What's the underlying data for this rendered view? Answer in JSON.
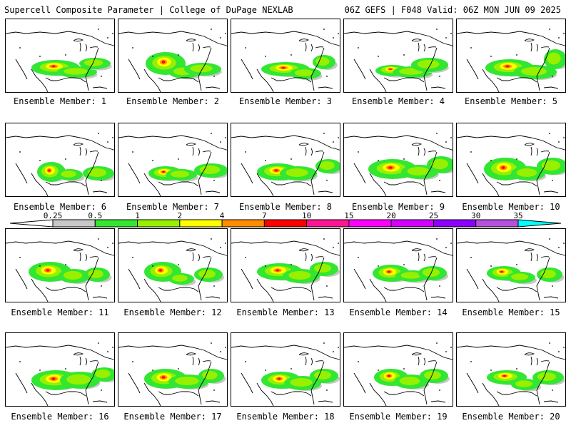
{
  "header": {
    "left": "Supercell Composite Parameter | College of DuPage NEXLAB",
    "right": "06Z GEFS | F048 Valid: 06Z MON JUN 09 2025"
  },
  "legend": {
    "ticks": [
      "0.25",
      "0.5",
      "1",
      "2",
      "4",
      "7",
      "10",
      "15",
      "20",
      "25",
      "30",
      "35"
    ],
    "colors": [
      "#c8c8c8",
      "#32e632",
      "#96f000",
      "#ffff00",
      "#ff8c00",
      "#ff0000",
      "#ff1493",
      "#ff00ff",
      "#d200ff",
      "#8c00ff",
      "#b450dc",
      "#00ffff"
    ]
  },
  "members": [
    {
      "label": "Ensemble Member: 1"
    },
    {
      "label": "Ensemble Member: 2"
    },
    {
      "label": "Ensemble Member: 3"
    },
    {
      "label": "Ensemble Member: 4"
    },
    {
      "label": "Ensemble Member: 5"
    },
    {
      "label": "Ensemble Member: 6"
    },
    {
      "label": "Ensemble Member: 7"
    },
    {
      "label": "Ensemble Member: 8"
    },
    {
      "label": "Ensemble Member: 9"
    },
    {
      "label": "Ensemble Member: 10"
    },
    {
      "label": "Ensemble Member: 11"
    },
    {
      "label": "Ensemble Member: 12"
    },
    {
      "label": "Ensemble Member: 13"
    },
    {
      "label": "Ensemble Member: 14"
    },
    {
      "label": "Ensemble Member: 15"
    },
    {
      "label": "Ensemble Member: 16"
    },
    {
      "label": "Ensemble Member: 17"
    },
    {
      "label": "Ensemble Member: 18"
    },
    {
      "label": "Ensemble Member: 19"
    },
    {
      "label": "Ensemble Member: 20"
    }
  ]
}
